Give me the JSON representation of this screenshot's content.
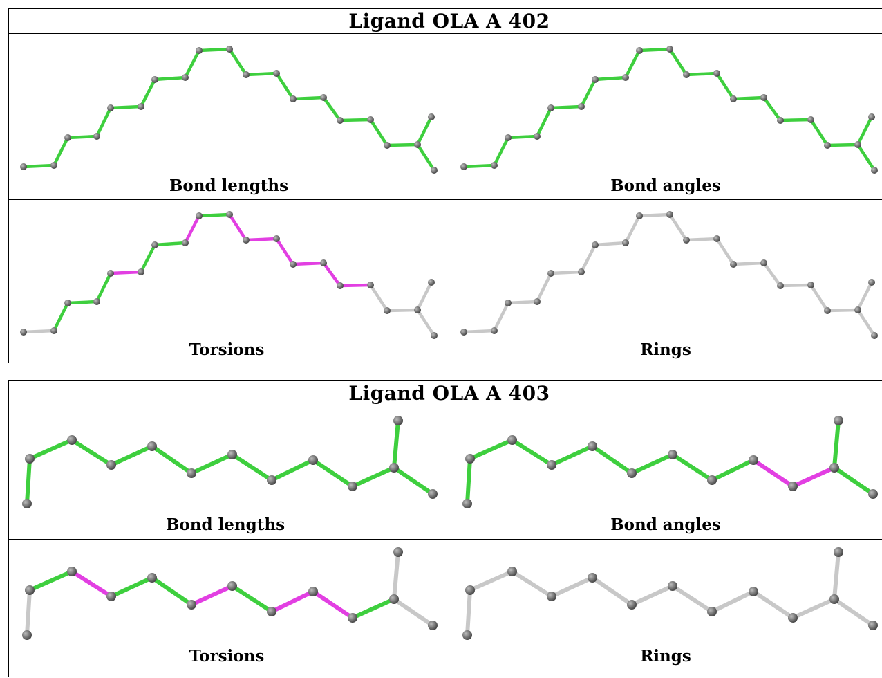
{
  "tables": [
    {
      "title": "Ligand OLA A 402",
      "panels": [
        {
          "caption": "Bond lengths",
          "bond_colors": [
            "green",
            "green",
            "green",
            "green",
            "green",
            "green",
            "green",
            "green",
            "green",
            "green",
            "green",
            "green",
            "green",
            "green",
            "green",
            "green",
            "green"
          ]
        },
        {
          "caption": "Bond angles",
          "bond_colors": [
            "green",
            "green",
            "green",
            "green",
            "green",
            "green",
            "green",
            "green",
            "green",
            "green",
            "green",
            "green",
            "green",
            "green",
            "green",
            "green",
            "green"
          ]
        },
        {
          "caption": "Torsions",
          "bond_colors": [
            "grey",
            "green",
            "green",
            "green",
            "magenta",
            "green",
            "green",
            "magenta",
            "green",
            "magenta",
            "magenta",
            "magenta",
            "magenta",
            "magenta",
            "magenta",
            "grey",
            "grey"
          ]
        },
        {
          "caption": "Rings",
          "bond_colors": [
            "grey",
            "grey",
            "grey",
            "grey",
            "grey",
            "grey",
            "grey",
            "grey",
            "grey",
            "grey",
            "grey",
            "grey",
            "grey",
            "grey",
            "grey",
            "grey",
            "grey"
          ]
        }
      ]
    },
    {
      "title": "Ligand OLA A 403",
      "panels": [
        {
          "caption": "Bond lengths",
          "bond_colors": [
            "green",
            "green",
            "green",
            "green",
            "green",
            "green",
            "green",
            "green",
            "green",
            "green",
            "green",
            "green"
          ]
        },
        {
          "caption": "Bond angles",
          "bond_colors": [
            "green",
            "green",
            "green",
            "green",
            "green",
            "green",
            "green",
            "green",
            "magenta",
            "magenta",
            "green",
            "green"
          ]
        },
        {
          "caption": "Torsions",
          "bond_colors": [
            "grey",
            "green",
            "magenta",
            "green",
            "green",
            "magenta",
            "green",
            "magenta",
            "magenta",
            "green",
            "grey",
            "grey"
          ]
        },
        {
          "caption": "Rings",
          "bond_colors": [
            "grey",
            "grey",
            "grey",
            "grey",
            "grey",
            "grey",
            "grey",
            "grey",
            "grey",
            "grey",
            "grey",
            "grey"
          ]
        }
      ]
    }
  ],
  "colors": {
    "green": "#3ecf3e",
    "magenta": "#e23fe2",
    "grey": "#c8c8c8",
    "atom": "#7d7d7d"
  }
}
